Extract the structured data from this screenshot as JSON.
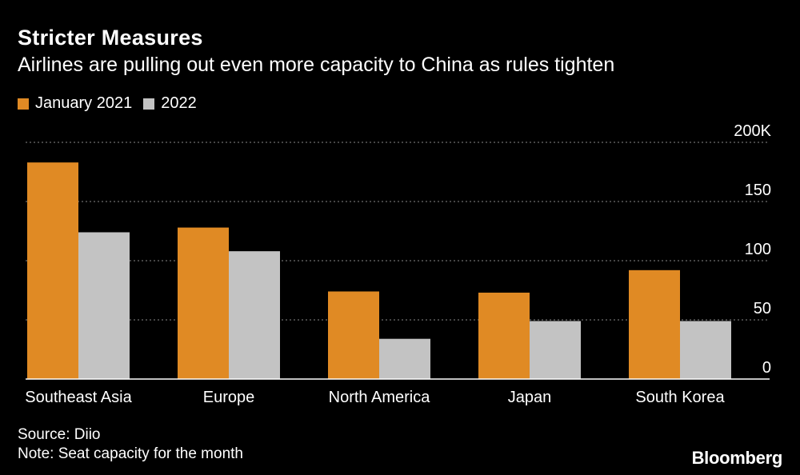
{
  "header": {
    "title": "Stricter Measures",
    "subtitle": "Airlines are pulling out even more capacity to China as rules tighten"
  },
  "legend": [
    {
      "label": "January 2021",
      "color": "#E08A24"
    },
    {
      "label": "2022",
      "color": "#C3C3C3"
    }
  ],
  "chart_data": {
    "type": "bar",
    "categories": [
      "Southeast Asia",
      "Europe",
      "North America",
      "Japan",
      "South Korea"
    ],
    "series": [
      {
        "name": "January 2021",
        "color": "#E08A24",
        "values": [
          183,
          128,
          74,
          73,
          92
        ]
      },
      {
        "name": "2022",
        "color": "#C3C3C3",
        "values": [
          124,
          108,
          34,
          49,
          49
        ]
      }
    ],
    "y_ticks": [
      "0",
      "50",
      "100",
      "150",
      "200K"
    ],
    "ylim": [
      0,
      200
    ],
    "ylabel": "",
    "xlabel": "",
    "grid": true
  },
  "footer": {
    "source": "Source: Diio",
    "note": "Note: Seat capacity for the month"
  },
  "brand": "Bloomberg"
}
